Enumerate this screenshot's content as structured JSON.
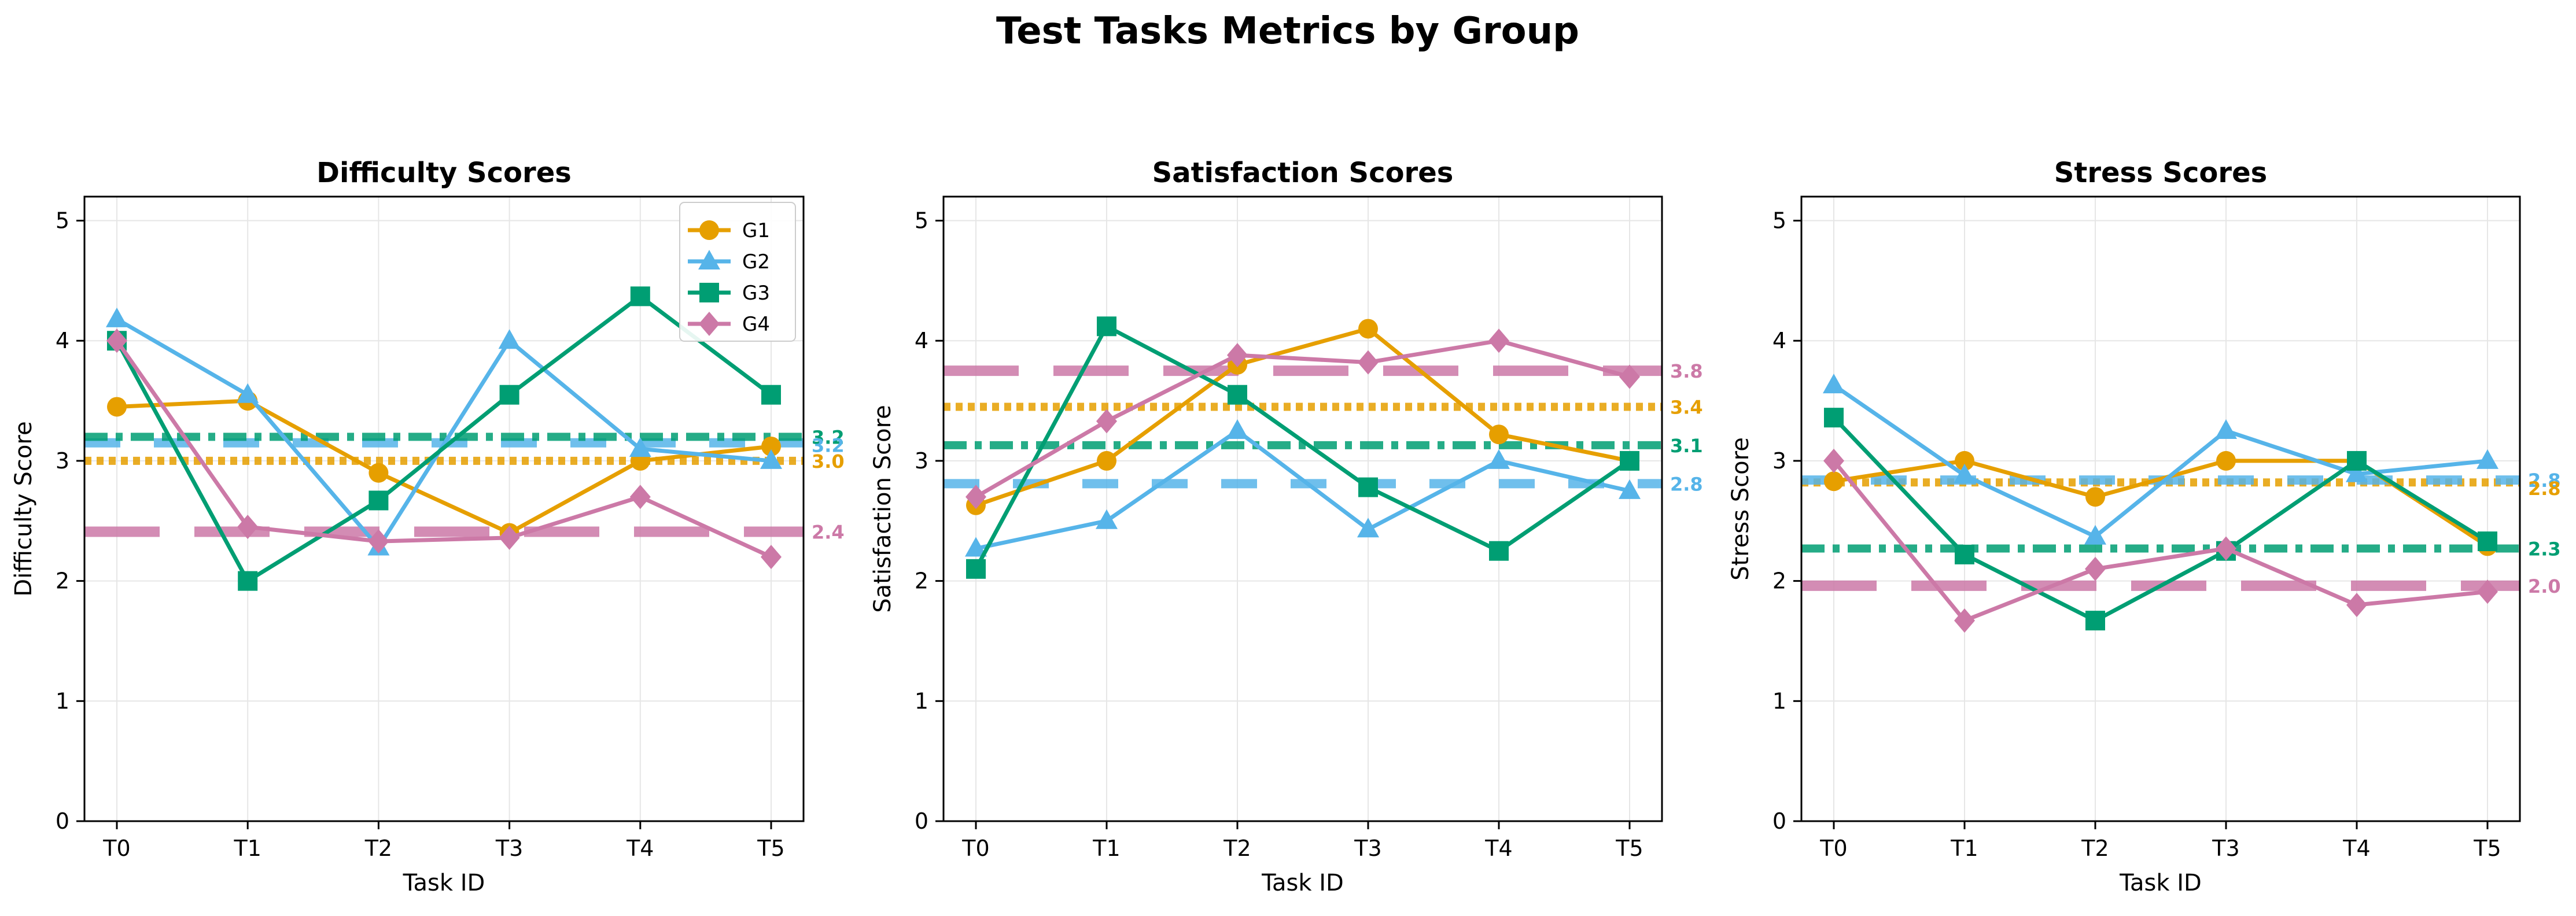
{
  "figure_title": "Test Tasks Metrics by Group",
  "colors": {
    "G1": "#E69F00",
    "G2": "#56B4E9",
    "G3": "#009E73",
    "G4": "#CC79A7"
  },
  "legend": {
    "placement": "top-right of first panel",
    "entries": [
      "G1",
      "G2",
      "G3",
      "G4"
    ]
  },
  "chart_data": [
    {
      "type": "line",
      "title": "Difficulty Scores",
      "xlabel": "Task ID",
      "ylabel": "Difficulty Score",
      "categories": [
        "T0",
        "T1",
        "T2",
        "T3",
        "T4",
        "T5"
      ],
      "ylim": [
        0,
        5.2
      ],
      "yticks": [
        "0",
        "1",
        "2",
        "3",
        "4",
        "5"
      ],
      "grid": true,
      "series": [
        {
          "name": "G1",
          "marker": "circle",
          "values": [
            3.45,
            3.5,
            2.9,
            2.4,
            3.0,
            3.12
          ],
          "mean": 3.0,
          "mean_label": "3.0",
          "mean_style": "dotted"
        },
        {
          "name": "G2",
          "marker": "triangle",
          "values": [
            4.18,
            3.55,
            2.28,
            4.0,
            3.1,
            3.0
          ],
          "mean": 3.15,
          "mean_label": "3.2",
          "mean_style": "dashed"
        },
        {
          "name": "G3",
          "marker": "square",
          "values": [
            4.0,
            2.0,
            2.67,
            3.55,
            4.37,
            3.55
          ],
          "mean": 3.2,
          "mean_label": "3.2",
          "mean_style": "dashdot"
        },
        {
          "name": "G4",
          "marker": "diamond",
          "values": [
            4.0,
            2.45,
            2.33,
            2.36,
            2.7,
            2.2
          ],
          "mean": 2.41,
          "mean_label": "2.4",
          "mean_style": "longdash"
        }
      ]
    },
    {
      "type": "line",
      "title": "Satisfaction Scores",
      "xlabel": "Task ID",
      "ylabel": "Satisfaction Score",
      "categories": [
        "T0",
        "T1",
        "T2",
        "T3",
        "T4",
        "T5"
      ],
      "ylim": [
        0,
        5.2
      ],
      "yticks": [
        "0",
        "1",
        "2",
        "3",
        "4",
        "5"
      ],
      "grid": true,
      "series": [
        {
          "name": "G1",
          "marker": "circle",
          "values": [
            2.63,
            3.0,
            3.8,
            4.1,
            3.22,
            3.0
          ],
          "mean": 3.45,
          "mean_label": "3.4",
          "mean_style": "dotted"
        },
        {
          "name": "G2",
          "marker": "triangle",
          "values": [
            2.27,
            2.5,
            3.25,
            2.43,
            3.0,
            2.75
          ],
          "mean": 2.81,
          "mean_label": "2.8",
          "mean_style": "dashed"
        },
        {
          "name": "G3",
          "marker": "square",
          "values": [
            2.1,
            4.12,
            3.55,
            2.78,
            2.25,
            3.0
          ],
          "mean": 3.13,
          "mean_label": "3.1",
          "mean_style": "dashdot"
        },
        {
          "name": "G4",
          "marker": "diamond",
          "values": [
            2.7,
            3.33,
            3.88,
            3.82,
            4.0,
            3.7
          ],
          "mean": 3.75,
          "mean_label": "3.8",
          "mean_style": "longdash"
        }
      ]
    },
    {
      "type": "line",
      "title": "Stress Scores",
      "xlabel": "Task ID",
      "ylabel": "Stress Score",
      "categories": [
        "T0",
        "T1",
        "T2",
        "T3",
        "T4",
        "T5"
      ],
      "ylim": [
        0,
        5.2
      ],
      "yticks": [
        "0",
        "1",
        "2",
        "3",
        "4",
        "5"
      ],
      "grid": true,
      "series": [
        {
          "name": "G1",
          "marker": "circle",
          "values": [
            2.83,
            3.0,
            2.7,
            3.0,
            3.0,
            2.29
          ],
          "mean": 2.82,
          "mean_label": "2.8",
          "mean_style": "dotted"
        },
        {
          "name": "G2",
          "marker": "triangle",
          "values": [
            3.63,
            2.88,
            2.37,
            3.25,
            2.89,
            3.0
          ],
          "mean": 2.84,
          "mean_label": "2.8",
          "mean_style": "dashed"
        },
        {
          "name": "G3",
          "marker": "square",
          "values": [
            3.36,
            2.22,
            1.67,
            2.25,
            3.0,
            2.33
          ],
          "mean": 2.27,
          "mean_label": "2.3",
          "mean_style": "dashdot"
        },
        {
          "name": "G4",
          "marker": "diamond",
          "values": [
            3.0,
            1.67,
            2.1,
            2.27,
            1.8,
            1.91
          ],
          "mean": 1.96,
          "mean_label": "2.0",
          "mean_style": "longdash"
        }
      ]
    }
  ]
}
